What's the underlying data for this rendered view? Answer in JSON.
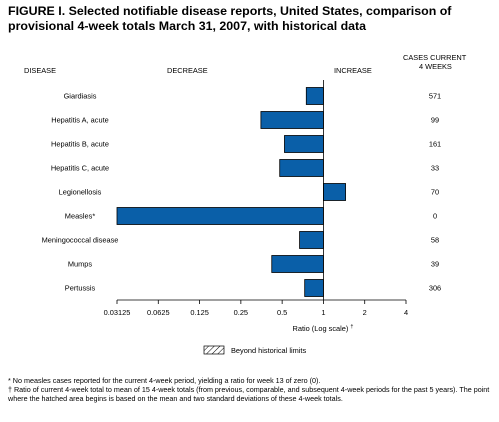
{
  "title": "FIGURE I. Selected notifiable disease reports, United States, comparison of provisional 4-week totals March 31, 2007, with historical data",
  "headers": {
    "disease": "DISEASE",
    "decrease": "DECREASE",
    "increase": "INCREASE",
    "cases_line1": "CASES CURRENT",
    "cases_line2": "4 WEEKS"
  },
  "legend": {
    "label": "Beyond historical limits"
  },
  "footnotes": {
    "star": "* No measles cases reported for the current 4-week period, yielding a ratio for week 13 of zero (0).",
    "dagger": "† Ratio of current 4-week total to mean of 15 4-week totals (from previous, comparable, and subsequent 4-week periods for the past 5 years). The point where the hatched area begins is based on the mean and two standard deviations of these 4-week totals."
  },
  "colors": {
    "bar": "#0a5fa8",
    "bar_stroke": "#000000"
  },
  "chart_data": {
    "type": "bar",
    "orientation": "horizontal",
    "categories": [
      "Giardiasis",
      "Hepatitis A, acute",
      "Hepatitis B, acute",
      "Hepatitis C, acute",
      "Legionellosis",
      "Measles*",
      "Meningococcal disease",
      "Mumps",
      "Pertussis"
    ],
    "values": [
      0.75,
      0.35,
      0.52,
      0.48,
      1.45,
      0.03125,
      0.67,
      0.42,
      0.73
    ],
    "cases_current_4_weeks": [
      "571",
      "99",
      "161",
      "33",
      "70",
      "0",
      "58",
      "39",
      "306"
    ],
    "xlabel": "Ratio (Log scale)",
    "xlabel_mark": "†",
    "xscale": "log2",
    "xlim": [
      0.03125,
      4
    ],
    "baseline": 1,
    "xticks": [
      0.03125,
      0.0625,
      0.125,
      0.25,
      0.5,
      1,
      2,
      4
    ],
    "xtick_labels": [
      "0.03125",
      "0.0625",
      "0.125",
      "0.25",
      "0.5",
      "1",
      "2",
      "4"
    ],
    "beyond_historical_limits": [
      false,
      false,
      false,
      false,
      false,
      false,
      false,
      false,
      false
    ]
  }
}
